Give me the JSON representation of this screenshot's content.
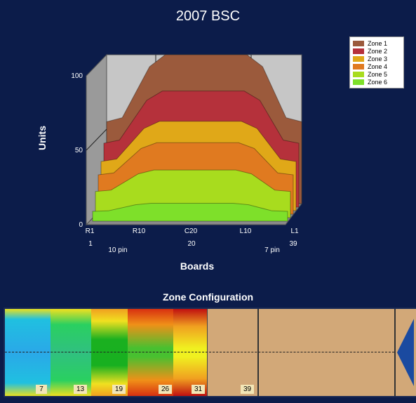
{
  "chart_data": {
    "type": "area",
    "title": "2007 BSC",
    "xlabel": "Boards",
    "ylabel": "Units",
    "ylim": [
      0,
      100
    ],
    "yticks": [
      "0",
      "50",
      "100"
    ],
    "x_ticks": [
      "R1",
      "R10",
      "C20",
      "L10",
      "L1"
    ],
    "x_numbers": [
      "1",
      "20",
      "39"
    ],
    "pin_labels": [
      "10 pin",
      "7 pin"
    ],
    "legend_placement": "top-right",
    "series": [
      {
        "name": "Zone 1",
        "color": "#9b5a3c",
        "peak": 100
      },
      {
        "name": "Zone 2",
        "color": "#b5313b",
        "peak": 78
      },
      {
        "name": "Zone 3",
        "color": "#e0a818",
        "peak": 60
      },
      {
        "name": "Zone 4",
        "color": "#e07a20",
        "peak": 48
      },
      {
        "name": "Zone 5",
        "color": "#a8dc1e",
        "peak": 32
      },
      {
        "name": "Zone 6",
        "color": "#7ee02a",
        "peak": 12
      }
    ]
  },
  "zone_configuration": {
    "title": "Zone Configuration",
    "boards": [
      "7",
      "13",
      "19",
      "26",
      "31",
      "39"
    ]
  }
}
